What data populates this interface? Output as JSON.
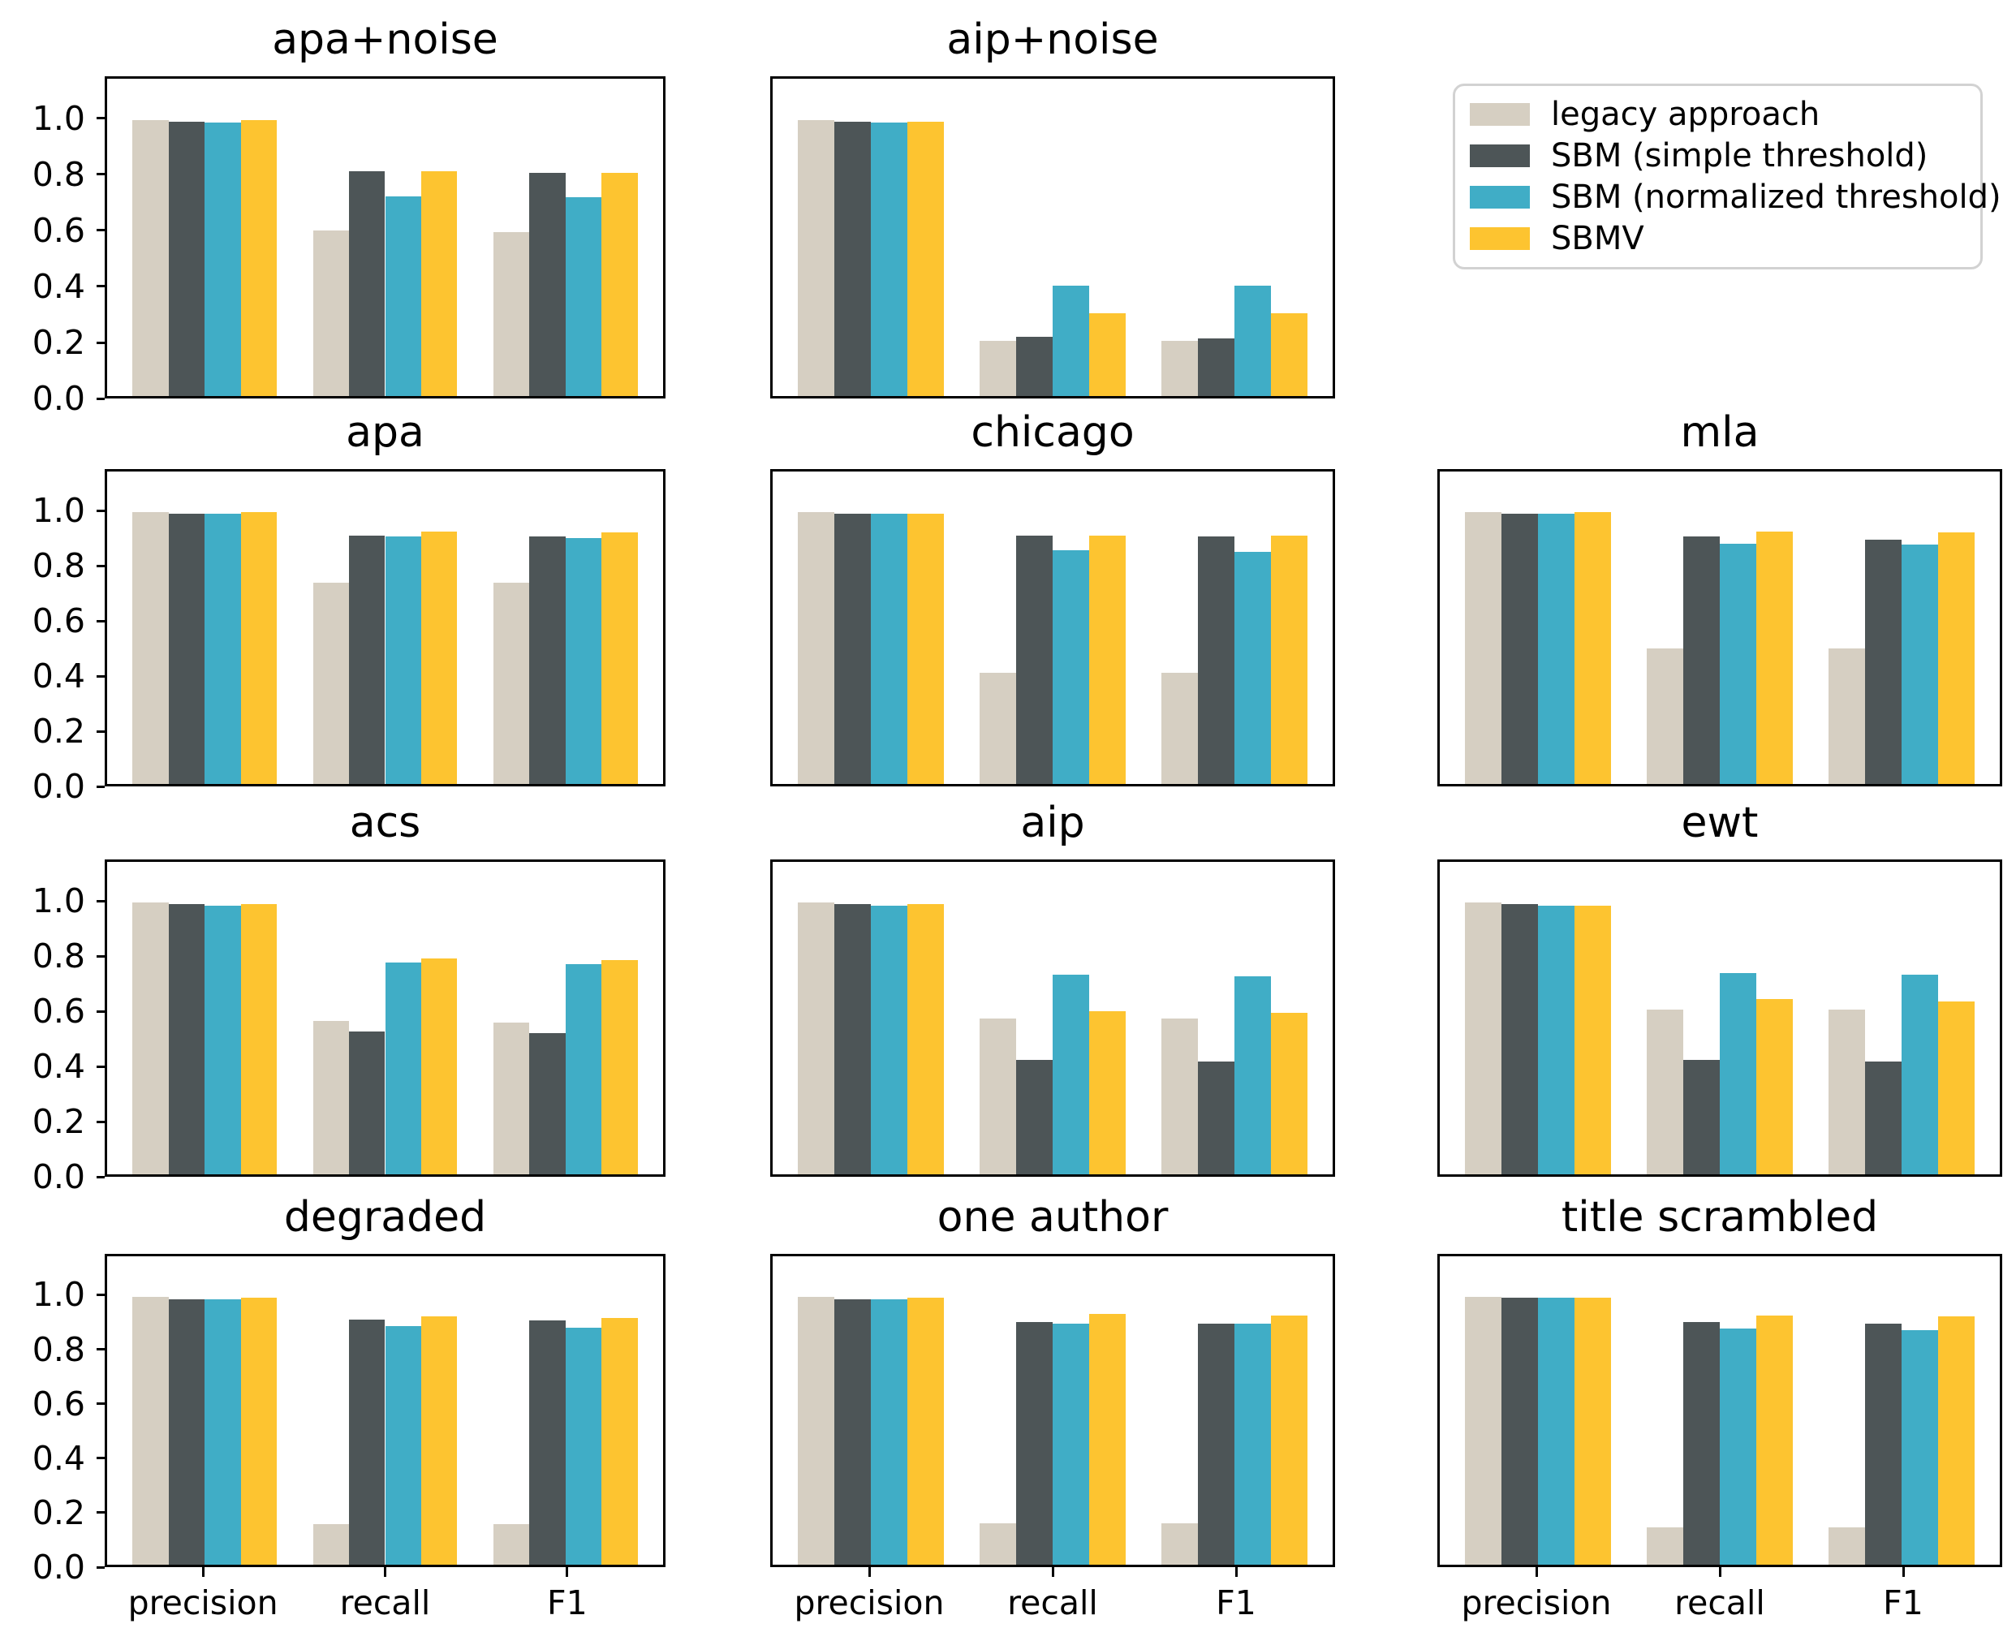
{
  "figure": {
    "background": "#ffffff",
    "text_color": "#000000",
    "spine_color": "#000000"
  },
  "legend": {
    "position": "top-right",
    "border_color": "#d2d2d2",
    "entries": [
      {
        "label": "legacy approach",
        "color": "#d6cfc2"
      },
      {
        "label": "SBM (simple threshold)",
        "color": "#4d5557"
      },
      {
        "label": "SBM (normalized threshold)",
        "color": "#40adc6"
      },
      {
        "label": "SBMV",
        "color": "#fdc430"
      }
    ]
  },
  "axes": {
    "yticks": [
      "0.0",
      "0.2",
      "0.4",
      "0.6",
      "0.8",
      "1.0"
    ],
    "ylim": [
      0,
      1.15
    ],
    "grid": false,
    "categories": [
      "precision",
      "recall",
      "F1"
    ]
  },
  "chart_data": [
    {
      "type": "bar",
      "title": "apa+noise",
      "categories": [
        "precision",
        "recall",
        "F1"
      ],
      "ylim": [
        0,
        1.15
      ],
      "series": [
        {
          "name": "legacy approach",
          "values": [
            1.0,
            0.6,
            0.595
          ]
        },
        {
          "name": "SBM (simple threshold)",
          "values": [
            0.995,
            0.815,
            0.81
          ]
        },
        {
          "name": "SBM (normalized threshold)",
          "values": [
            0.99,
            0.725,
            0.72
          ]
        },
        {
          "name": "SBMV",
          "values": [
            1.0,
            0.815,
            0.81
          ]
        }
      ]
    },
    {
      "type": "bar",
      "title": "aip+noise",
      "categories": [
        "precision",
        "recall",
        "F1"
      ],
      "ylim": [
        0,
        1.15
      ],
      "series": [
        {
          "name": "legacy approach",
          "values": [
            1.0,
            0.2,
            0.2
          ]
        },
        {
          "name": "SBM (simple threshold)",
          "values": [
            0.995,
            0.215,
            0.21
          ]
        },
        {
          "name": "SBM (normalized threshold)",
          "values": [
            0.99,
            0.4,
            0.4
          ]
        },
        {
          "name": "SBMV",
          "values": [
            0.995,
            0.3,
            0.3
          ]
        }
      ]
    },
    {
      "type": "bar",
      "title": "apa",
      "categories": [
        "precision",
        "recall",
        "F1"
      ],
      "ylim": [
        0,
        1.15
      ],
      "series": [
        {
          "name": "legacy approach",
          "values": [
            1.0,
            0.74,
            0.74
          ]
        },
        {
          "name": "SBM (simple threshold)",
          "values": [
            0.995,
            0.915,
            0.91
          ]
        },
        {
          "name": "SBM (normalized threshold)",
          "values": [
            0.995,
            0.91,
            0.905
          ]
        },
        {
          "name": "SBMV",
          "values": [
            1.0,
            0.93,
            0.925
          ]
        }
      ]
    },
    {
      "type": "bar",
      "title": "chicago",
      "categories": [
        "precision",
        "recall",
        "F1"
      ],
      "ylim": [
        0,
        1.15
      ],
      "series": [
        {
          "name": "legacy approach",
          "values": [
            1.0,
            0.41,
            0.41
          ]
        },
        {
          "name": "SBM (simple threshold)",
          "values": [
            0.995,
            0.915,
            0.91
          ]
        },
        {
          "name": "SBM (normalized threshold)",
          "values": [
            0.995,
            0.86,
            0.855
          ]
        },
        {
          "name": "SBMV",
          "values": [
            0.995,
            0.915,
            0.915
          ]
        }
      ]
    },
    {
      "type": "bar",
      "title": "mla",
      "categories": [
        "precision",
        "recall",
        "F1"
      ],
      "ylim": [
        0,
        1.15
      ],
      "series": [
        {
          "name": "legacy approach",
          "values": [
            1.0,
            0.5,
            0.5
          ]
        },
        {
          "name": "SBM (simple threshold)",
          "values": [
            0.995,
            0.91,
            0.9
          ]
        },
        {
          "name": "SBM (normalized threshold)",
          "values": [
            0.995,
            0.885,
            0.88
          ]
        },
        {
          "name": "SBMV",
          "values": [
            1.0,
            0.93,
            0.925
          ]
        }
      ]
    },
    {
      "type": "bar",
      "title": "acs",
      "categories": [
        "precision",
        "recall",
        "F1"
      ],
      "ylim": [
        0,
        1.15
      ],
      "series": [
        {
          "name": "legacy approach",
          "values": [
            1.0,
            0.565,
            0.56
          ]
        },
        {
          "name": "SBM (simple threshold)",
          "values": [
            0.995,
            0.525,
            0.52
          ]
        },
        {
          "name": "SBM (normalized threshold)",
          "values": [
            0.99,
            0.78,
            0.775
          ]
        },
        {
          "name": "SBMV",
          "values": [
            0.995,
            0.795,
            0.79
          ]
        }
      ]
    },
    {
      "type": "bar",
      "title": "aip",
      "categories": [
        "precision",
        "recall",
        "F1"
      ],
      "ylim": [
        0,
        1.15
      ],
      "series": [
        {
          "name": "legacy approach",
          "values": [
            1.0,
            0.575,
            0.575
          ]
        },
        {
          "name": "SBM (simple threshold)",
          "values": [
            0.995,
            0.42,
            0.415
          ]
        },
        {
          "name": "SBM (normalized threshold)",
          "values": [
            0.99,
            0.735,
            0.73
          ]
        },
        {
          "name": "SBMV",
          "values": [
            0.995,
            0.6,
            0.595
          ]
        }
      ]
    },
    {
      "type": "bar",
      "title": "ewt",
      "categories": [
        "precision",
        "recall",
        "F1"
      ],
      "ylim": [
        0,
        1.15
      ],
      "series": [
        {
          "name": "legacy approach",
          "values": [
            1.0,
            0.605,
            0.605
          ]
        },
        {
          "name": "SBM (simple threshold)",
          "values": [
            0.995,
            0.42,
            0.415
          ]
        },
        {
          "name": "SBM (normalized threshold)",
          "values": [
            0.99,
            0.74,
            0.735
          ]
        },
        {
          "name": "SBMV",
          "values": [
            0.99,
            0.645,
            0.635
          ]
        }
      ]
    },
    {
      "type": "bar",
      "title": "degraded",
      "categories": [
        "precision",
        "recall",
        "F1"
      ],
      "ylim": [
        0,
        1.15
      ],
      "series": [
        {
          "name": "legacy approach",
          "values": [
            1.0,
            0.15,
            0.15
          ]
        },
        {
          "name": "SBM (simple threshold)",
          "values": [
            0.99,
            0.915,
            0.91
          ]
        },
        {
          "name": "SBM (normalized threshold)",
          "values": [
            0.99,
            0.89,
            0.885
          ]
        },
        {
          "name": "SBMV",
          "values": [
            0.995,
            0.925,
            0.92
          ]
        }
      ]
    },
    {
      "type": "bar",
      "title": "one author",
      "categories": [
        "precision",
        "recall",
        "F1"
      ],
      "ylim": [
        0,
        1.15
      ],
      "series": [
        {
          "name": "legacy approach",
          "values": [
            1.0,
            0.155,
            0.155
          ]
        },
        {
          "name": "SBM (simple threshold)",
          "values": [
            0.99,
            0.905,
            0.9
          ]
        },
        {
          "name": "SBM (normalized threshold)",
          "values": [
            0.99,
            0.9,
            0.9
          ]
        },
        {
          "name": "SBMV",
          "values": [
            0.995,
            0.935,
            0.93
          ]
        }
      ]
    },
    {
      "type": "bar",
      "title": "title scrambled",
      "categories": [
        "precision",
        "recall",
        "F1"
      ],
      "ylim": [
        0,
        1.15
      ],
      "series": [
        {
          "name": "legacy approach",
          "values": [
            1.0,
            0.14,
            0.14
          ]
        },
        {
          "name": "SBM (simple threshold)",
          "values": [
            0.995,
            0.905,
            0.9
          ]
        },
        {
          "name": "SBM (normalized threshold)",
          "values": [
            0.995,
            0.88,
            0.875
          ]
        },
        {
          "name": "SBMV",
          "values": [
            0.995,
            0.93,
            0.925
          ]
        }
      ]
    }
  ]
}
